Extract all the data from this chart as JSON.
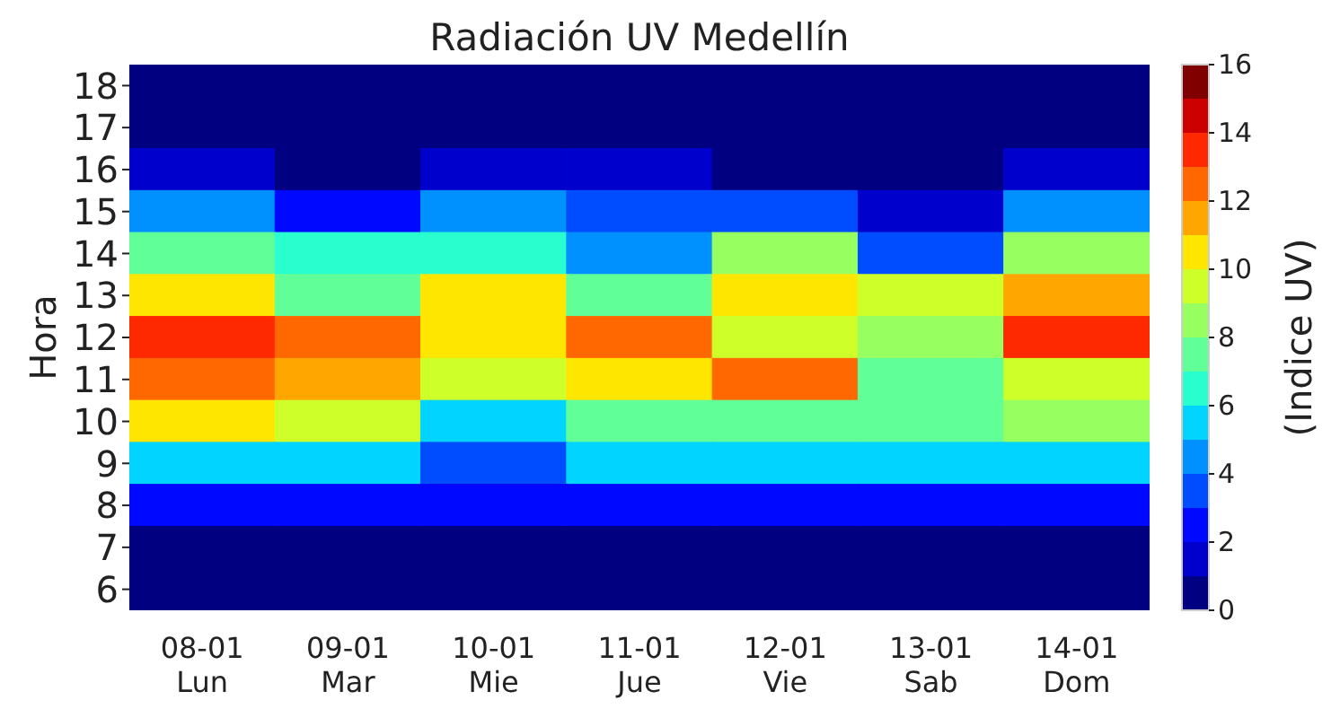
{
  "chart_data": {
    "type": "heatmap",
    "title": "Radiación UV Medellín",
    "ylabel": "Hora",
    "clabel": "(Indice UV)",
    "categories": [
      "08-01\nLun",
      "09-01\nMar",
      "10-01\nMie",
      "11-01\nJue",
      "12-01\nVie",
      "13-01\nSab",
      "14-01\nDom"
    ],
    "y_categories": [
      "18",
      "17",
      "16",
      "15",
      "14",
      "13",
      "12",
      "11",
      "10",
      "9",
      "8",
      "7",
      "6"
    ],
    "cells": [
      [
        0,
        0,
        0,
        0,
        0,
        0,
        0
      ],
      [
        0,
        0,
        0,
        0,
        0,
        0,
        0
      ],
      [
        1,
        0,
        1,
        1,
        0,
        0,
        1
      ],
      [
        4,
        2,
        4,
        3,
        3,
        1,
        4
      ],
      [
        7,
        6,
        6,
        4,
        8,
        3,
        8
      ],
      [
        10,
        7,
        10,
        7,
        10,
        9,
        11
      ],
      [
        13,
        12,
        10,
        12,
        9,
        8,
        13
      ],
      [
        12,
        11,
        9,
        10,
        12,
        7,
        9
      ],
      [
        10,
        9,
        5,
        7,
        7,
        7,
        8
      ],
      [
        5,
        5,
        3,
        5,
        5,
        5,
        5
      ],
      [
        2,
        2,
        2,
        2,
        2,
        2,
        2
      ],
      [
        0,
        0,
        0,
        0,
        0,
        0,
        0
      ],
      [
        0,
        0,
        0,
        0,
        0,
        0,
        0
      ]
    ],
    "clim": [
      0,
      16
    ],
    "cticks": [
      0,
      2,
      4,
      6,
      8,
      10,
      12,
      14,
      16
    ]
  }
}
